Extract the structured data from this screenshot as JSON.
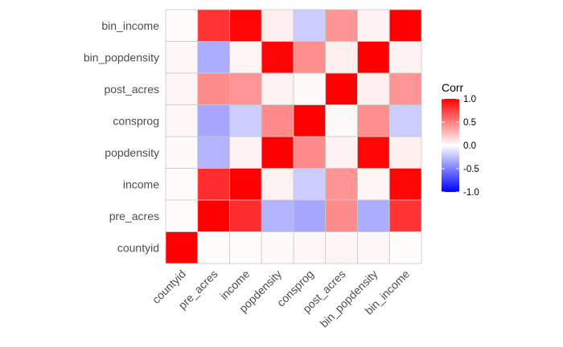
{
  "chart_data": {
    "type": "heatmap",
    "title": "",
    "xlabel": "",
    "ylabel": "",
    "variables": [
      "countyid",
      "pre_acres",
      "income",
      "popdensity",
      "consprog",
      "post_acres",
      "bin_popdensity",
      "bin_income"
    ],
    "x_tick_labels": [
      "countyid",
      "pre_acres",
      "income",
      "popdensity",
      "consprog",
      "post_acres",
      "bin_popdensity",
      "bin_income"
    ],
    "y_tick_labels": [
      "countyid",
      "pre_acres",
      "income",
      "popdensity",
      "consprog",
      "post_acres",
      "bin_popdensity",
      "bin_income"
    ],
    "matrix": [
      [
        1.0,
        0.01,
        0.01,
        0.02,
        0.03,
        0.04,
        0.03,
        0.01
      ],
      [
        0.01,
        1.0,
        0.82,
        -0.3,
        -0.35,
        0.45,
        -0.32,
        0.8
      ],
      [
        0.01,
        0.82,
        1.0,
        0.05,
        -0.2,
        0.42,
        0.04,
        0.98
      ],
      [
        0.02,
        -0.3,
        0.05,
        1.0,
        0.45,
        0.05,
        0.98,
        0.06
      ],
      [
        0.03,
        -0.35,
        -0.2,
        0.45,
        1.0,
        0.02,
        0.44,
        -0.2
      ],
      [
        0.04,
        0.45,
        0.42,
        0.05,
        0.02,
        1.0,
        0.06,
        0.42
      ],
      [
        0.03,
        -0.32,
        0.04,
        0.98,
        0.44,
        0.06,
        1.0,
        0.05
      ],
      [
        0.01,
        0.8,
        0.98,
        0.06,
        -0.2,
        0.42,
        0.05,
        1.0
      ]
    ],
    "color_scale": {
      "low": "#0000FF",
      "mid": "#FFFFFF",
      "high": "#FF0000",
      "limits": [
        -1,
        1
      ]
    },
    "legend": {
      "title": "Corr",
      "placement": "right",
      "ticks": [
        1.0,
        0.5,
        0.0,
        -0.5,
        -1.0
      ],
      "tick_labels": [
        "1.0",
        "0.5",
        "0.0",
        "-0.5",
        "-1.0"
      ]
    },
    "grid": false
  }
}
